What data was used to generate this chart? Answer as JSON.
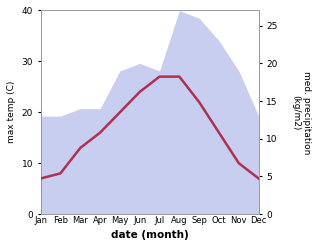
{
  "months": [
    "Jan",
    "Feb",
    "Mar",
    "Apr",
    "May",
    "Jun",
    "Jul",
    "Aug",
    "Sep",
    "Oct",
    "Nov",
    "Dec"
  ],
  "max_temp": [
    7,
    8,
    13,
    16,
    20,
    24,
    27,
    27,
    22,
    16,
    10,
    7
  ],
  "precipitation": [
    13,
    13,
    14,
    14,
    19,
    20,
    19,
    27,
    26,
    23,
    19,
    13
  ],
  "temp_ylim": [
    0,
    40
  ],
  "precip_ylim": [
    0,
    27.03
  ],
  "precip_yticks": [
    0,
    5,
    10,
    15,
    20,
    25
  ],
  "temp_yticks": [
    0,
    10,
    20,
    30,
    40
  ],
  "ylabel_left": "max temp (C)",
  "ylabel_right": "med. precipitation\n(kg/m2)",
  "xlabel": "date (month)",
  "line_color": "#b03050",
  "fill_color": "#aab4e8",
  "fill_alpha": 0.65,
  "background_color": "#ffffff"
}
